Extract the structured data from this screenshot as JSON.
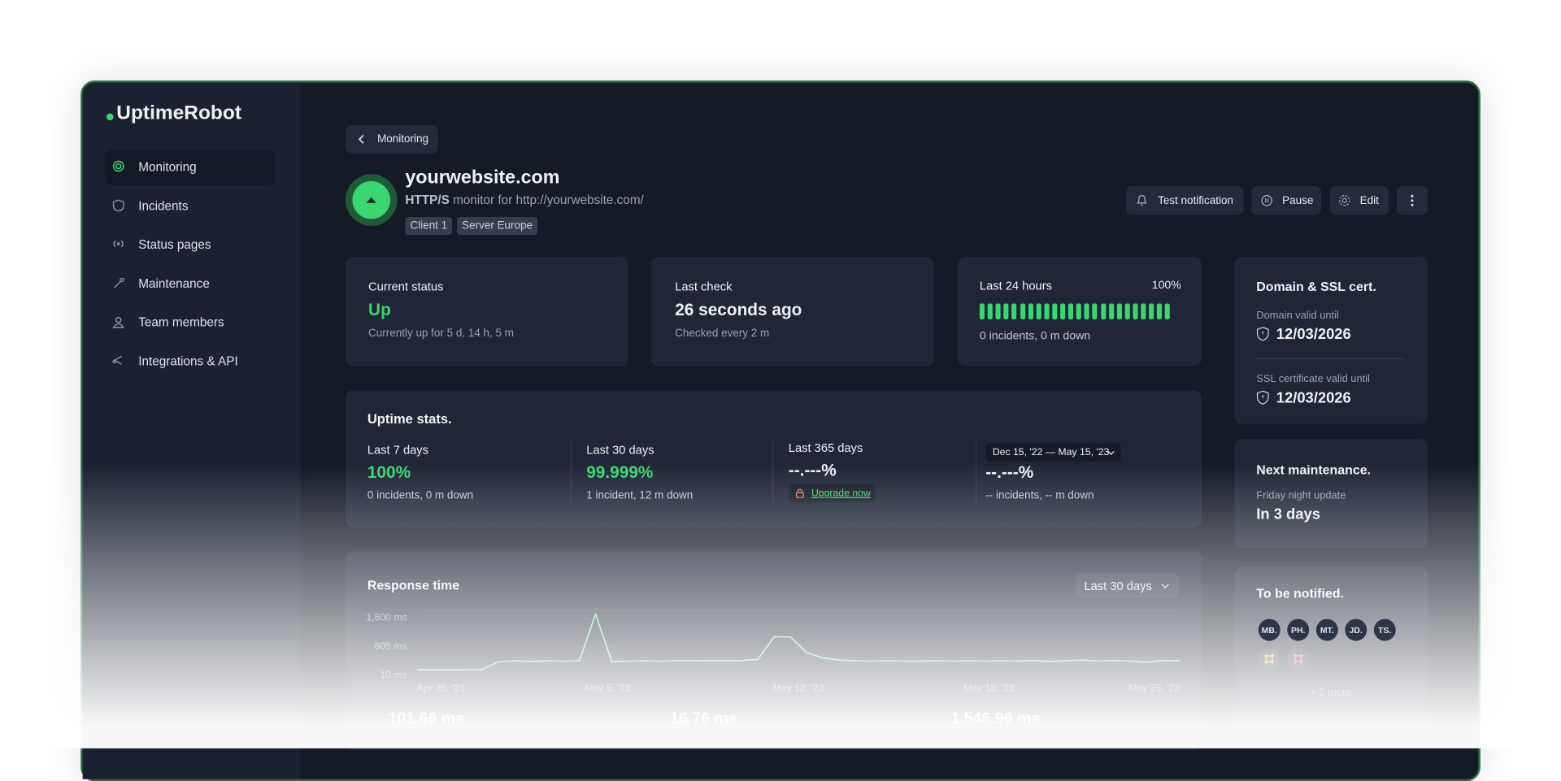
{
  "brand": "UptimeRobot",
  "nav": [
    "Monitoring",
    "Incidents",
    "Status pages",
    "Maintenance",
    "Team members",
    "Integrations & API"
  ],
  "breadcrumb": "Monitoring",
  "monitor": {
    "name": "yourwebsite.com",
    "protocol": "HTTP/S",
    "description": "monitor for http://yourwebsite.com/",
    "tags": [
      "Client 1",
      "Server Europe"
    ]
  },
  "actions": [
    "Test notification",
    "Pause",
    "Edit"
  ],
  "cards": {
    "current_status": {
      "label": "Current status",
      "value": "Up",
      "detail": "Currently up for 5 d, 14 h, 5 m"
    },
    "last_check": {
      "label": "Last check",
      "value": "26 seconds ago",
      "detail": "Checked every 2 m"
    },
    "last_24h": {
      "label": "Last 24 hours",
      "percent": "100%",
      "detail": "0 incidents, 0 m down"
    }
  },
  "uptime_stats": {
    "title": "Uptime stats.",
    "periods": [
      {
        "label": "Last 7 days",
        "value": "100%",
        "detail": "0 incidents, 0 m down"
      },
      {
        "label": "Last 30 days",
        "value": "99.999%",
        "detail": "1 incident, 12 m down"
      },
      {
        "label": "Last 365 days",
        "value": "--.---%",
        "upgrade": "Upgrade now"
      },
      {
        "range": "Dec 15, '22 — May 15, '23",
        "value": "--.---%",
        "detail": "-- incidents, -- m down"
      }
    ]
  },
  "domain": {
    "title": "Domain & SSL cert.",
    "domain_label": "Domain valid until",
    "domain_date": "12/03/2026",
    "ssl_label": "SSL certificate valid until",
    "ssl_date": "12/03/2026"
  },
  "maintenance": {
    "title": "Next maintenance.",
    "name": "Friday night update",
    "when": "In 3 days"
  },
  "notified": {
    "title": "To be notified.",
    "people": [
      "MB.",
      "PH.",
      "MT.",
      "JD.",
      "TS."
    ],
    "more": "+ 2 more"
  },
  "response_time": {
    "title": "Response time",
    "range": "Last 30 days",
    "chart": {
      "type": "line",
      "color": "#7ee0a6",
      "ylim": [
        10,
        1600
      ],
      "yticks": [
        {
          "value": 1600,
          "label": "1,600 ms"
        },
        {
          "value": 805,
          "label": "805 ms"
        },
        {
          "value": 10,
          "label": "10 ms"
        }
      ],
      "xtick_labels": [
        "Apr 25, '23",
        "May 5, '23",
        "May 12, '23",
        "May 18, '23",
        "May 25, '23"
      ],
      "values": [
        175,
        175,
        175,
        175,
        180,
        390,
        420,
        400,
        420,
        410,
        420,
        1710,
        390,
        410,
        420,
        410,
        420,
        420,
        430,
        420,
        430,
        460,
        1079,
        1079,
        650,
        500,
        440,
        420,
        410,
        420,
        410,
        410,
        420,
        410,
        420,
        410,
        420,
        410,
        430,
        400,
        420,
        440,
        410,
        430,
        410,
        380,
        430,
        420
      ]
    },
    "stats": [
      "101.66 ms",
      "16.76 ms",
      "1,546.96 ms"
    ]
  }
}
